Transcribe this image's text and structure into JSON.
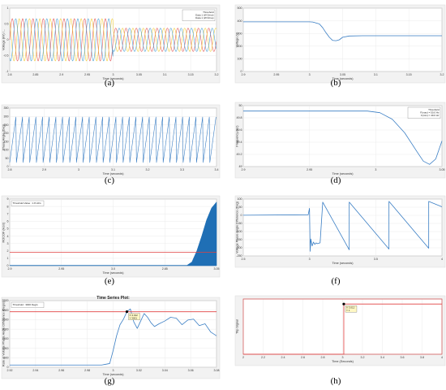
{
  "chart_data": [
    {
      "id": "a",
      "caption": "(a)",
      "type": "line",
      "x_ticks": [
        "2.8",
        "2.85",
        "2.9",
        "2.95",
        "3",
        "3.05",
        "3.1",
        "3.15",
        "3.2"
      ],
      "xlabel": "Time (seconds)",
      "ylabel": "Voltage (kV) /...",
      "ylim": [
        -1.5,
        1.5
      ],
      "xlim": [
        2.8,
        3.2
      ],
      "y_ticks": [
        "1",
        "0.5",
        "0",
        "-0.5",
        "-1"
      ],
      "legend": [
        "Threshold",
        "Data 1 (W Drive)",
        "Data 1 (W Drive)"
      ],
      "series": [
        {
          "name": "",
          "color": "#e15759",
          "phase": 0
        },
        {
          "name": "",
          "color": "#f1ce3f",
          "phase": 2.094
        },
        {
          "name": "",
          "color": "#4ea2d6",
          "phase": 4.189
        }
      ],
      "freq_hz": 50,
      "amplitude_before": 1.0,
      "amplitude_after": 0.55,
      "drop_at": 3.0
    },
    {
      "id": "b",
      "caption": "(b)",
      "type": "line",
      "x_ticks": [
        "2.9",
        "2.95",
        "3",
        "3.05",
        "3.1",
        "3.15",
        "3.2"
      ],
      "xlabel": "Time (seconds)",
      "ylabel": "Voltage (V)",
      "y_ticks": [
        "500",
        "400",
        "300",
        "200",
        "100",
        "0"
      ],
      "xlim": [
        2.9,
        3.2
      ],
      "ylim": [
        0,
        500
      ],
      "series": [
        {
          "name": "",
          "color": "#3a7ec4",
          "x": [
            2.9,
            3.0,
            3.005,
            3.015,
            3.02,
            3.025,
            3.03,
            3.035,
            3.04,
            3.045,
            3.05,
            3.06,
            3.08,
            3.2
          ],
          "y": [
            392,
            392,
            390,
            375,
            345,
            305,
            270,
            245,
            243,
            250,
            270,
            280,
            282,
            282
          ]
        }
      ]
    },
    {
      "id": "c",
      "caption": "(c)",
      "type": "line",
      "x_ticks": [
        "2.8",
        "2.9",
        "3",
        "3.1",
        "3.2",
        "3.3",
        "3.4"
      ],
      "xlabel": "Time (seconds)",
      "ylabel": "Phase Angle (Deg)",
      "y_ticks": [
        "350",
        "300",
        "250",
        "200",
        "150",
        "100",
        "50",
        "0"
      ],
      "xlim": [
        2.78,
        3.4
      ],
      "ylim": [
        0,
        360
      ],
      "series": [
        {
          "name": "",
          "color": "#3a7ec4",
          "sawtooth_freq": 50,
          "min": 25,
          "max": 305
        }
      ]
    },
    {
      "id": "d",
      "caption": "(d)",
      "type": "line",
      "x_ticks": [
        "2.9",
        "2.95",
        "3",
        "3.05"
      ],
      "xlabel": "Time (seconds)",
      "ylabel": "Frequency (Hz)",
      "y_ticks": [
        "50",
        "49.8",
        "49.6",
        "49.4",
        "49.2",
        "49"
      ],
      "xlim": [
        2.9,
        3.06
      ],
      "ylim": [
        48.98,
        50.1
      ],
      "legend": [
        "Threshold",
        "F(max) = 50.0 Hz",
        "F(min) = 49.0 Hz"
      ],
      "series": [
        {
          "name": "",
          "color": "#3a7ec4",
          "x": [
            2.9,
            3.0,
            3.01,
            3.02,
            3.03,
            3.04,
            3.045,
            3.05,
            3.055,
            3.06
          ],
          "y": [
            50.0,
            50.0,
            49.97,
            49.85,
            49.6,
            49.25,
            49.08,
            49.02,
            49.12,
            49.45
          ]
        }
      ]
    },
    {
      "id": "e",
      "caption": "(e)",
      "type": "area",
      "x_ticks": [
        "2.9",
        "2.95",
        "3.0",
        "2.85",
        "3.05"
      ],
      "xlabel": "Time (seconds)",
      "ylabel": "ROCOF (Hz/s)",
      "legend": [
        "Threshold Value : 1.8 Hz/s"
      ],
      "y_ticks": [
        "9",
        "8",
        "7",
        "6",
        "5",
        "4",
        "3",
        "2",
        "1",
        "0"
      ],
      "xlim": [
        2.85,
        3.06
      ],
      "ylim": [
        0,
        9
      ],
      "threshold": 1.8,
      "threshold_color": "#e04040",
      "series": [
        {
          "name": "",
          "color": "#1f6fb5",
          "x": [
            2.85,
            3.0,
            3.03,
            3.035,
            3.04,
            3.045,
            3.05,
            3.055,
            3.06
          ],
          "y": [
            0.05,
            0.05,
            0.05,
            0.5,
            2.0,
            4.0,
            6.2,
            7.8,
            8.6
          ]
        }
      ]
    },
    {
      "id": "f",
      "caption": "(f)",
      "type": "line",
      "x_ticks": [
        "2.5",
        "3",
        "3.5",
        "4"
      ],
      "xlabel": "Time (seconds)",
      "ylabel": "Voltage Phase Angle Difference (Deg)",
      "y_ticks": [
        "100",
        "50",
        "0",
        "-50",
        "-100",
        "-150",
        "-200",
        "-250"
      ],
      "xlim": [
        2.5,
        4.0
      ],
      "ylim": [
        -260,
        110
      ],
      "series": [
        {
          "name": "",
          "color": "#3a7ec4",
          "x": [
            2.5,
            2.99,
            3.0,
            3.005,
            3.01,
            3.02,
            3.03,
            3.04,
            3.05,
            3.06,
            3.08,
            3.1,
            3.3,
            3.3001,
            3.6,
            3.6001,
            3.9,
            3.9001,
            4.0
          ],
          "y": [
            5,
            8,
            50,
            -230,
            -150,
            -195,
            -170,
            -185,
            -175,
            -180,
            -175,
            90,
            -220,
            90,
            -215,
            95,
            -210,
            95,
            60
          ]
        }
      ]
    },
    {
      "id": "g",
      "caption": "(g)",
      "type": "line",
      "title": "Time Series Plot:",
      "x_ticks": [
        "2.92",
        "2.94",
        "2.96",
        "2.98",
        "3",
        "3.02",
        "3.04",
        "3.06",
        "3.08"
      ],
      "xlabel": "Time (seconds)",
      "ylabel": "Rate of Voltage Phase Angle Difference (Deg/s)",
      "y_ticks": [
        "3500",
        "3000",
        "2500",
        "2000",
        "1500",
        "1000",
        "500",
        "0"
      ],
      "xlim": [
        2.91,
        3.09
      ],
      "ylim": [
        0,
        3600
      ],
      "legend": [
        "Threshold : 3000 Deg/s"
      ],
      "threshold": 3000,
      "threshold_color": "#e04040",
      "annotation": {
        "label_x": "X  3.012",
        "label_y": "Y  3001",
        "x": 3.012,
        "y": 3001
      },
      "series": [
        {
          "name": "",
          "color": "#3a7ec4",
          "x": [
            2.91,
            2.99,
            2.997,
            3.0,
            3.003,
            3.006,
            3.009,
            3.012,
            3.015,
            3.018,
            3.021,
            3.024,
            3.027,
            3.03,
            3.033,
            3.036,
            3.04,
            3.045,
            3.05,
            3.055,
            3.06,
            3.065,
            3.07,
            3.075,
            3.08,
            3.085,
            3.09
          ],
          "y": [
            120,
            120,
            200,
            900,
            1700,
            2300,
            2600,
            3001,
            3150,
            2450,
            2100,
            2500,
            2900,
            2700,
            2400,
            2200,
            2350,
            2500,
            2700,
            2650,
            2300,
            2550,
            2600,
            2250,
            2350,
            1900,
            1700
          ]
        }
      ]
    },
    {
      "id": "h",
      "caption": "(h)",
      "type": "line",
      "x_ticks": [
        "2",
        "2.2",
        "2.4",
        "2.6",
        "2.8",
        "3",
        "3.2",
        "3.4",
        "3.6",
        "3.8",
        "4"
      ],
      "xlabel": "Time (Seconds)",
      "ylabel": "Trip Signal",
      "xlim": [
        2.0,
        4.0
      ],
      "ylim": [
        0,
        1.1
      ],
      "annotation": {
        "label_x": "X  3.012",
        "label_y": "Y  1",
        "x": 3.012,
        "y": 1
      },
      "series": [
        {
          "name": "",
          "color": "#e04040",
          "x": [
            2.0,
            3.012,
            3.012,
            4.0
          ],
          "y": [
            0,
            0,
            1,
            1
          ]
        }
      ]
    }
  ]
}
